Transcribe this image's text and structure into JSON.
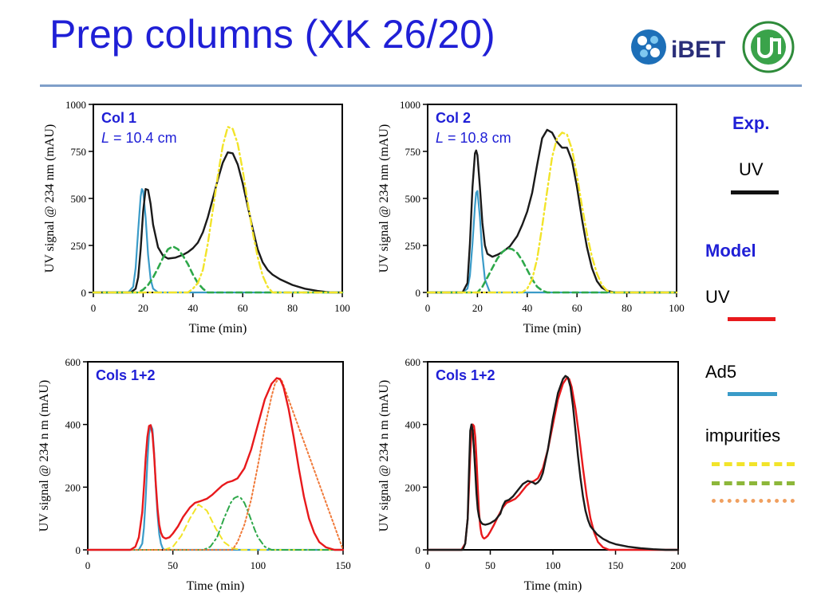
{
  "title": "Prep columns (XK 26/20)",
  "logo_text": "iBET",
  "legend": {
    "exp_heading": "Exp.",
    "exp_uv": "UV",
    "model_heading": "Model",
    "model_uv": "UV",
    "ad5": "Ad5",
    "impurities": "impurities",
    "colors": {
      "exp_uv": "#111111",
      "model_uv": "#e8191c",
      "ad5": "#3a9bc8",
      "imp1": "#f2e42a",
      "imp2": "#8db73a",
      "imp3": "#f0a060"
    }
  },
  "chart_data": [
    {
      "type": "line",
      "label_title": "Col 1",
      "label_sub": "L = 10.4 cm",
      "xlabel": "Time (min)",
      "ylabel": "UV signal  @ 234 nm (mAU)",
      "xlim": [
        0,
        100
      ],
      "ylim": [
        0,
        1000
      ],
      "xticks": [
        0,
        20,
        40,
        60,
        80,
        100
      ],
      "yticks": [
        0,
        250,
        500,
        750,
        1000
      ],
      "series": [
        {
          "style": "blue-solid",
          "x": [
            0,
            14,
            16,
            17,
            18,
            19,
            19.5,
            20,
            21,
            22,
            23,
            24,
            26,
            100
          ],
          "y": [
            0,
            0,
            30,
            130,
            330,
            510,
            550,
            540,
            400,
            200,
            70,
            20,
            0,
            0
          ]
        },
        {
          "style": "black-solid",
          "x": [
            0,
            15,
            17,
            18,
            19,
            20,
            21,
            22,
            23,
            24,
            26,
            28,
            30,
            33,
            36,
            38,
            40,
            42,
            44,
            46,
            48,
            50,
            52,
            54,
            56,
            58,
            60,
            62,
            64,
            66,
            68,
            70,
            72,
            75,
            80,
            85,
            90,
            95,
            100
          ],
          "y": [
            0,
            0,
            20,
            80,
            230,
            430,
            550,
            545,
            470,
            360,
            240,
            195,
            180,
            185,
            200,
            215,
            235,
            265,
            320,
            400,
            500,
            600,
            690,
            745,
            740,
            680,
            580,
            460,
            340,
            230,
            160,
            120,
            95,
            70,
            40,
            20,
            8,
            0,
            0
          ]
        },
        {
          "style": "green-dash",
          "x": [
            0,
            18,
            20,
            22,
            24,
            26,
            28,
            30,
            32,
            34,
            36,
            38,
            40,
            42,
            44,
            46,
            100
          ],
          "y": [
            0,
            0,
            15,
            40,
            80,
            130,
            185,
            230,
            245,
            230,
            195,
            150,
            95,
            50,
            20,
            0,
            0
          ]
        },
        {
          "style": "yellow-dashdot",
          "x": [
            0,
            38,
            40,
            42,
            44,
            46,
            48,
            50,
            52,
            54,
            56,
            58,
            60,
            62,
            64,
            66,
            68,
            70,
            72,
            100
          ],
          "y": [
            0,
            0,
            20,
            50,
            120,
            260,
            440,
            620,
            780,
            880,
            870,
            790,
            650,
            480,
            320,
            190,
            90,
            30,
            0,
            0
          ]
        }
      ]
    },
    {
      "type": "line",
      "label_title": "Col 2",
      "label_sub": "L = 10.8 cm",
      "xlabel": "Time (min)",
      "ylabel": "UV signal  @ 234 nm (mAU)",
      "xlim": [
        0,
        100
      ],
      "ylim": [
        0,
        1000
      ],
      "xticks": [
        0,
        20,
        40,
        60,
        80,
        100
      ],
      "yticks": [
        0,
        250,
        500,
        750,
        1000
      ],
      "series": [
        {
          "style": "blue-solid",
          "x": [
            0,
            14,
            16,
            17,
            18,
            19,
            19.5,
            20,
            21,
            22,
            23,
            25,
            100
          ],
          "y": [
            0,
            0,
            20,
            90,
            260,
            460,
            530,
            540,
            400,
            200,
            70,
            0,
            0
          ]
        },
        {
          "style": "black-solid",
          "x": [
            0,
            14,
            16,
            17,
            18,
            19,
            19.5,
            20,
            21,
            22,
            23,
            24,
            26,
            28,
            30,
            33,
            36,
            38,
            40,
            42,
            44,
            46,
            48,
            50,
            52,
            54,
            56,
            58,
            60,
            62,
            64,
            66,
            68,
            70,
            72,
            75,
            80,
            100
          ],
          "y": [
            0,
            0,
            50,
            260,
            560,
            740,
            755,
            730,
            560,
            370,
            250,
            205,
            190,
            200,
            215,
            245,
            300,
            360,
            430,
            530,
            680,
            820,
            865,
            850,
            800,
            770,
            770,
            700,
            560,
            390,
            240,
            130,
            60,
            25,
            10,
            0,
            0,
            0
          ]
        },
        {
          "style": "green-dash",
          "x": [
            0,
            20,
            22,
            24,
            26,
            28,
            30,
            32,
            34,
            36,
            38,
            40,
            42,
            44,
            46,
            48,
            100
          ],
          "y": [
            0,
            0,
            30,
            80,
            130,
            180,
            215,
            235,
            230,
            210,
            170,
            120,
            70,
            30,
            10,
            0,
            0
          ]
        },
        {
          "style": "yellow-dashdot",
          "x": [
            0,
            38,
            40,
            42,
            44,
            46,
            48,
            50,
            52,
            54,
            56,
            58,
            60,
            62,
            64,
            66,
            68,
            70,
            72,
            74,
            76,
            100
          ],
          "y": [
            0,
            0,
            20,
            70,
            180,
            350,
            540,
            720,
            820,
            850,
            840,
            760,
            620,
            460,
            310,
            190,
            100,
            40,
            10,
            0,
            0,
            0
          ]
        }
      ]
    },
    {
      "type": "line",
      "label_title": "Cols 1+2",
      "xlabel": "Time  (min)",
      "ylabel": "UV signal  @  234 n m  (mAU)",
      "xlim": [
        0,
        150
      ],
      "ylim": [
        0,
        600
      ],
      "xticks": [
        0,
        50,
        100,
        150
      ],
      "yticks": [
        0,
        200,
        400,
        600
      ],
      "series": [
        {
          "style": "blue-solid",
          "x": [
            0,
            30,
            32,
            33,
            34,
            35,
            36,
            37,
            38,
            39,
            40,
            41,
            42,
            43,
            44,
            45,
            150
          ],
          "y": [
            0,
            0,
            20,
            70,
            160,
            280,
            370,
            398,
            385,
            310,
            200,
            110,
            50,
            20,
            5,
            0,
            0
          ]
        },
        {
          "style": "yellow-dash",
          "x": [
            0,
            45,
            50,
            55,
            60,
            65,
            70,
            75,
            80,
            85,
            90,
            150
          ],
          "y": [
            0,
            0,
            10,
            45,
            100,
            145,
            125,
            70,
            25,
            5,
            0,
            0
          ]
        },
        {
          "style": "green-dashdot",
          "x": [
            0,
            68,
            72,
            76,
            80,
            84,
            86,
            88,
            90,
            92,
            94,
            96,
            98,
            100,
            104,
            108,
            150
          ],
          "y": [
            0,
            0,
            10,
            40,
            100,
            150,
            165,
            170,
            165,
            150,
            125,
            95,
            65,
            40,
            10,
            0,
            0
          ]
        },
        {
          "style": "orange-dot",
          "x": [
            0,
            85,
            88,
            92,
            96,
            100,
            104,
            108,
            110,
            112,
            114,
            150
          ],
          "y": [
            0,
            0,
            25,
            80,
            160,
            270,
            390,
            490,
            530,
            545,
            540,
            0
          ]
        },
        {
          "style": "red-solid",
          "x": [
            0,
            25,
            28,
            30,
            32,
            33,
            34,
            35,
            36,
            37,
            38,
            39,
            40,
            41,
            42,
            43,
            44,
            45,
            46,
            48,
            50,
            53,
            56,
            60,
            63,
            66,
            70,
            73,
            76,
            79,
            82,
            85,
            88,
            92,
            96,
            100,
            104,
            108,
            111,
            113,
            115,
            118,
            121,
            124,
            127,
            130,
            133,
            136,
            140,
            145,
            150
          ],
          "y": [
            0,
            0,
            10,
            40,
            120,
            200,
            290,
            360,
            395,
            398,
            370,
            300,
            210,
            130,
            80,
            55,
            42,
            38,
            36,
            40,
            52,
            75,
            105,
            135,
            150,
            155,
            163,
            175,
            190,
            205,
            215,
            220,
            228,
            260,
            320,
            400,
            480,
            530,
            548,
            545,
            520,
            450,
            360,
            260,
            170,
            100,
            55,
            25,
            8,
            0,
            0
          ]
        }
      ]
    },
    {
      "type": "line",
      "label_title": "Cols 1+2",
      "xlabel": "Time  (min)",
      "ylabel": "UV signal  @   234 n m  (mAU)",
      "xlim": [
        0,
        200
      ],
      "ylim": [
        0,
        600
      ],
      "xticks": [
        0,
        50,
        100,
        150,
        200
      ],
      "yticks": [
        0,
        200,
        400,
        600
      ],
      "series": [
        {
          "style": "red-solid",
          "x": [
            0,
            27,
            30,
            32,
            33,
            34,
            35,
            36,
            37,
            38,
            39,
            40,
            41,
            42,
            43,
            44,
            45,
            46,
            48,
            50,
            53,
            56,
            60,
            63,
            66,
            70,
            73,
            76,
            79,
            82,
            85,
            88,
            92,
            96,
            100,
            104,
            108,
            111,
            113,
            115,
            118,
            121,
            124,
            127,
            130,
            133,
            136,
            140,
            145,
            200
          ],
          "y": [
            0,
            0,
            20,
            100,
            200,
            300,
            370,
            400,
            395,
            360,
            290,
            200,
            120,
            75,
            50,
            40,
            36,
            38,
            45,
            58,
            80,
            105,
            135,
            150,
            155,
            163,
            175,
            190,
            205,
            215,
            220,
            228,
            260,
            320,
            400,
            480,
            530,
            548,
            545,
            520,
            450,
            360,
            260,
            170,
            100,
            55,
            25,
            8,
            0,
            0
          ]
        },
        {
          "style": "black-solid",
          "x": [
            0,
            28,
            30,
            32,
            33,
            34,
            35,
            36,
            37,
            38,
            39,
            40,
            41,
            42,
            43,
            44,
            46,
            48,
            50,
            52,
            54,
            56,
            58,
            60,
            62,
            65,
            68,
            72,
            76,
            80,
            84,
            86,
            88,
            90,
            92,
            96,
            100,
            104,
            108,
            110,
            112,
            114,
            116,
            118,
            120,
            122,
            124,
            126,
            128,
            130,
            135,
            140,
            145,
            150,
            160,
            170,
            180,
            190,
            200
          ],
          "y": [
            0,
            0,
            20,
            100,
            250,
            380,
            400,
            380,
            320,
            250,
            180,
            130,
            105,
            92,
            86,
            82,
            80,
            82,
            85,
            90,
            95,
            105,
            115,
            140,
            155,
            160,
            170,
            190,
            210,
            220,
            215,
            210,
            215,
            225,
            245,
            320,
            420,
            500,
            545,
            555,
            550,
            520,
            460,
            380,
            300,
            230,
            170,
            125,
            95,
            75,
            50,
            35,
            25,
            18,
            10,
            5,
            2,
            0,
            0
          ]
        }
      ]
    }
  ]
}
